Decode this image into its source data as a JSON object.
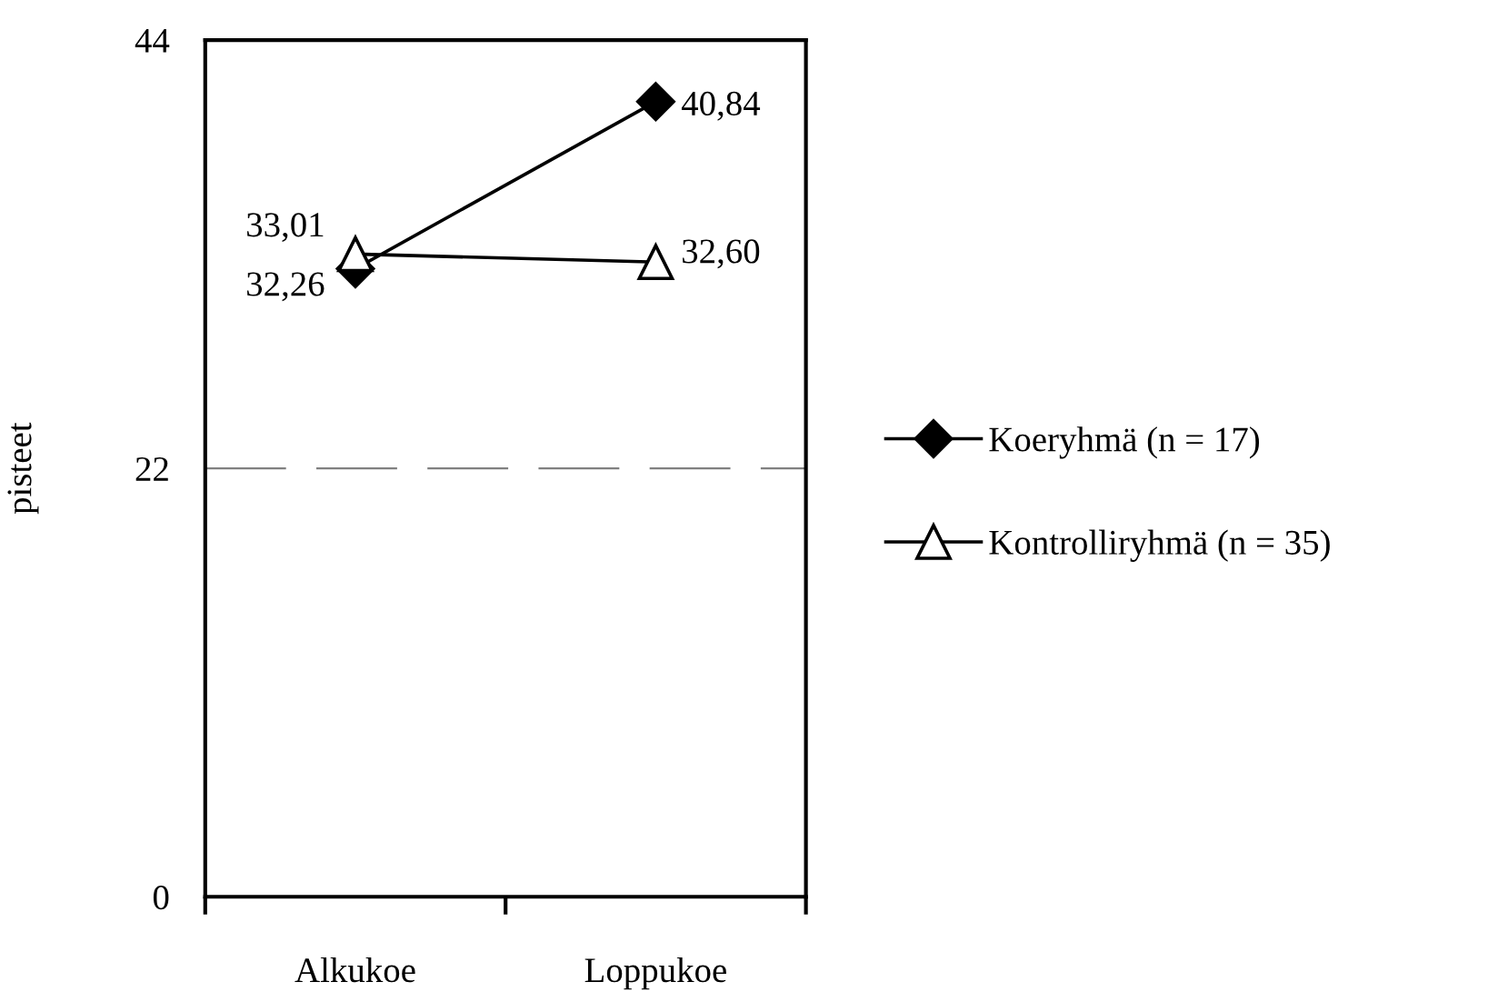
{
  "chart_data": {
    "type": "line",
    "ylabel": "pisteet",
    "categories": [
      "Alkukoe",
      "Loppukoe"
    ],
    "series": [
      {
        "name": "Koeryhmä (n = 17)",
        "color": "#000000",
        "marker": "diamond",
        "values": [
          32.26,
          40.84
        ],
        "value_labels": [
          "32,26",
          "40,84"
        ]
      },
      {
        "name": "Kontrolliryhmä (n = 35)",
        "color": "#000000",
        "colors": [
          "#ffffff",
          "#ffffff"
        ],
        "marker": "triangle",
        "values": [
          33.01,
          32.6
        ],
        "value_labels": [
          "33,01",
          "32,60"
        ]
      }
    ],
    "ylim": [
      0,
      44
    ],
    "yticks": [
      0,
      22,
      44
    ],
    "ref_lines": [
      {
        "axis": "y",
        "value": 22,
        "color": "#808080",
        "line_style": "dashed"
      }
    ],
    "grid": false,
    "legend": "right"
  }
}
